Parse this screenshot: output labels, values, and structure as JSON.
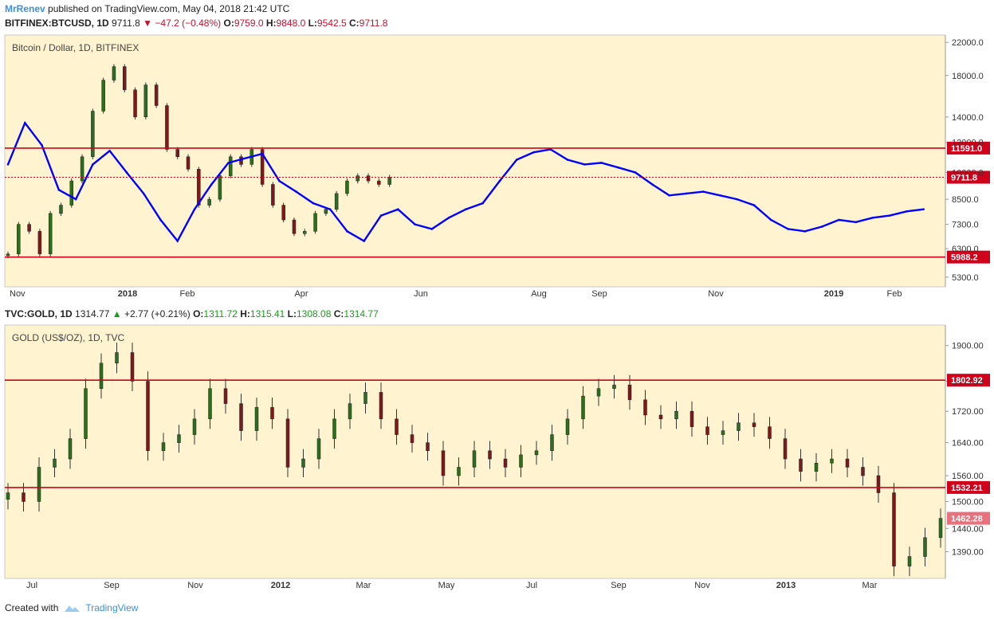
{
  "header": {
    "user": "MrRenev",
    "published_text": "published on TradingView.com, May 04, 2018 21:42 UTC"
  },
  "footer": {
    "created_with": "Created with",
    "brand": "TradingView"
  },
  "colors": {
    "panel_bg": "#fff3d0",
    "level_line": "#d0021b",
    "btc_line": "#0000ff",
    "candle_up": "#2b6e1e",
    "candle_down": "#7a1a1a"
  },
  "chart_data": [
    {
      "type": "line",
      "symbol_line": {
        "symbol": "BITFINEX:BTCUSD, 1D",
        "last": "9711.8",
        "change": "−47.2 (−0.48%)",
        "O": "9759.0",
        "H": "9848.0",
        "L": "9542.5",
        "C": "9711.8"
      },
      "title": "Bitcoin / Dollar, 1D, BITFINEX",
      "y_scale": "log",
      "ylim": [
        5000,
        23000
      ],
      "y_ticks": [
        "22000.0",
        "18000.0",
        "14000.0",
        "12000.0",
        "10000.0",
        "8500.0",
        "7300.0",
        "6300.0",
        "5300.0"
      ],
      "x_ticks": [
        "Nov",
        "2018",
        "Feb",
        "Apr",
        "Jun",
        "Aug",
        "Sep",
        "Nov",
        "2019",
        "Feb"
      ],
      "levels": [
        {
          "value": 11591.0,
          "label": "11591.0"
        },
        {
          "value": 5988.2,
          "label": "5988.2"
        }
      ],
      "last_price": {
        "value": 9711.8,
        "label": "9711.8"
      },
      "series": [
        {
          "type": "candlestick",
          "x": [
            0,
            5,
            10,
            15,
            20,
            25,
            30,
            35,
            40,
            45,
            50,
            55,
            60,
            65,
            70,
            75,
            80,
            85,
            90,
            95,
            100,
            105,
            110,
            115,
            120,
            125,
            130,
            135,
            140,
            145,
            150,
            155,
            160,
            165,
            170,
            175,
            180
          ],
          "close": [
            6100,
            7300,
            7000,
            6100,
            7800,
            8200,
            9500,
            11000,
            14500,
            17500,
            19000,
            16500,
            14000,
            17000,
            15000,
            11500,
            11000,
            10200,
            8200,
            8500,
            9800,
            11000,
            10500,
            11500,
            9300,
            8200,
            7500,
            6900,
            7000,
            7800,
            8000,
            8800,
            9500,
            9800,
            9500,
            9300,
            9711.8
          ]
        },
        {
          "type": "line",
          "x": [
            0,
            8,
            16,
            24,
            32,
            40,
            48,
            56,
            64,
            72,
            80,
            88,
            96,
            104,
            112,
            120,
            128,
            136,
            144,
            152,
            160,
            168,
            176,
            184,
            192,
            200,
            208,
            216,
            224,
            232,
            240,
            248,
            256,
            264,
            272,
            280,
            288,
            296,
            304,
            312,
            320,
            328,
            336,
            344,
            352,
            360,
            368,
            376,
            384,
            392,
            400,
            408,
            416,
            424,
            432
          ],
          "y": [
            10500,
            13500,
            11800,
            9000,
            8500,
            10500,
            11400,
            10000,
            8800,
            7500,
            6600,
            8000,
            9300,
            10600,
            10900,
            11200,
            9500,
            8900,
            8300,
            8000,
            7000,
            6600,
            7700,
            8000,
            7300,
            7100,
            7600,
            8000,
            8300,
            9500,
            10800,
            11300,
            11500,
            10800,
            10500,
            10600,
            10300,
            10000,
            9300,
            8700,
            8800,
            8900,
            8700,
            8500,
            8200,
            7500,
            7100,
            7000,
            7200,
            7500,
            7400,
            7600,
            7700,
            7900,
            8000
          ]
        }
      ]
    },
    {
      "type": "line",
      "symbol_line": {
        "symbol": "TVC:GOLD, 1D",
        "last": "1314.77",
        "change": "+2.77 (+0.21%)",
        "O": "1311.72",
        "H": "1315.41",
        "L": "1308.08",
        "C": "1314.77"
      },
      "title": "GOLD (US$/OZ), 1D, TVC",
      "y_scale": "log",
      "ylim": [
        1335,
        1960
      ],
      "y_ticks": [
        "1900.00",
        "1800.00",
        "1720.00",
        "1640.00",
        "1560.00",
        "1500.00",
        "1440.00",
        "1390.00"
      ],
      "x_ticks": [
        "Jul",
        "Sep",
        "Nov",
        "2012",
        "Mar",
        "May",
        "Jul",
        "Sep",
        "Nov",
        "2013",
        "Mar"
      ],
      "levels": [
        {
          "value": 1802.92,
          "label": "1802.92"
        },
        {
          "value": 1532.21,
          "label": "1532.21"
        }
      ],
      "last_price": {
        "value": 1462.28,
        "label": "1462.28"
      },
      "series": [
        {
          "type": "candlestick",
          "x": [
            0,
            8,
            16,
            24,
            32,
            40,
            48,
            56,
            64,
            72,
            80,
            88,
            96,
            104,
            112,
            120,
            128,
            136,
            144,
            152,
            160,
            168,
            176,
            184,
            192,
            200,
            208,
            216,
            224,
            232,
            240,
            248,
            256,
            264,
            272,
            280,
            288,
            296,
            304,
            312,
            320,
            328,
            336,
            344,
            352,
            360,
            368,
            376,
            384,
            392,
            400,
            408,
            416,
            424,
            432,
            440,
            448,
            456,
            464,
            472,
            480
          ],
          "close": [
            1520,
            1500,
            1580,
            1600,
            1650,
            1780,
            1850,
            1880,
            1800,
            1620,
            1640,
            1660,
            1700,
            1780,
            1740,
            1670,
            1730,
            1700,
            1580,
            1600,
            1650,
            1700,
            1740,
            1770,
            1700,
            1660,
            1640,
            1620,
            1560,
            1580,
            1620,
            1600,
            1580,
            1610,
            1620,
            1660,
            1700,
            1760,
            1780,
            1790,
            1750,
            1710,
            1700,
            1720,
            1680,
            1660,
            1670,
            1690,
            1680,
            1650,
            1600,
            1570,
            1590,
            1600,
            1580,
            1560,
            1520,
            1360,
            1380,
            1420,
            1462.28
          ]
        }
      ]
    }
  ]
}
